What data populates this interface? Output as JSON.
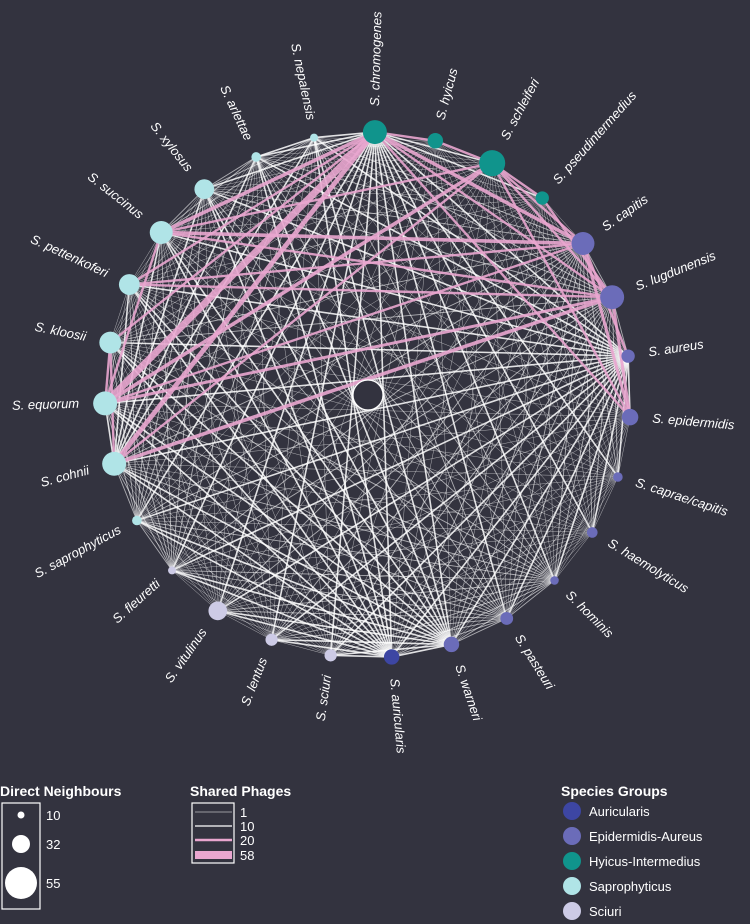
{
  "colors": {
    "background": "#33333f",
    "edge_light": "#ffffff",
    "edge_pink": "#e9a6cf",
    "Auriculari": "#3d46a3",
    "Epidermidis-Aureus": "#6b6cb9",
    "Hyicus-Intermedius": "#10948c",
    "Saprophyticus": "#b0e4e7",
    "Sciuri": "#cdcbe6"
  },
  "nodes": [
    {
      "label": "S. chromogenes",
      "group": "Hyicus-Intermedius",
      "neighbours": 40
    },
    {
      "label": "S. hyicus",
      "group": "Hyicus-Intermedius",
      "neighbours": 24
    },
    {
      "label": "S. schleiferi",
      "group": "Hyicus-Intermedius",
      "neighbours": 44
    },
    {
      "label": "S. pseudintermedius",
      "group": "Hyicus-Intermedius",
      "neighbours": 20
    },
    {
      "label": "S. capitis",
      "group": "Epidermidis-Aureus",
      "neighbours": 38
    },
    {
      "label": "S. lugdunensis",
      "group": "Epidermidis-Aureus",
      "neighbours": 40
    },
    {
      "label": "S. aureus",
      "group": "Epidermidis-Aureus",
      "neighbours": 20
    },
    {
      "label": "S. epidermidis",
      "group": "Epidermidis-Aureus",
      "neighbours": 26
    },
    {
      "label": "S. caprae/capitis",
      "group": "Epidermidis-Aureus",
      "neighbours": 13
    },
    {
      "label": "S. haemolyticus",
      "group": "Epidermidis-Aureus",
      "neighbours": 15
    },
    {
      "label": "S. hominis",
      "group": "Epidermidis-Aureus",
      "neighbours": 11
    },
    {
      "label": "S. pasteuri",
      "group": "Epidermidis-Aureus",
      "neighbours": 19
    },
    {
      "label": "S. warneri",
      "group": "Epidermidis-Aureus",
      "neighbours": 24
    },
    {
      "label": "S. auricularis",
      "group": "Auriculari",
      "neighbours": 24
    },
    {
      "label": "S. sciuri",
      "group": "Sciuri",
      "neighbours": 18
    },
    {
      "label": "S. lentus",
      "group": "Sciuri",
      "neighbours": 18
    },
    {
      "label": "S. vitulinus",
      "group": "Sciuri",
      "neighbours": 30
    },
    {
      "label": "S. fleuretti",
      "group": "Sciuri",
      "neighbours": 10
    },
    {
      "label": "S. saprophyticus",
      "group": "Saprophyticus",
      "neighbours": 13
    },
    {
      "label": "S. cohnii",
      "group": "Saprophyticus",
      "neighbours": 40
    },
    {
      "label": "S. equorum",
      "group": "Saprophyticus",
      "neighbours": 40
    },
    {
      "label": "S. kloosii",
      "group": "Saprophyticus",
      "neighbours": 36
    },
    {
      "label": "S. pettenkoferi",
      "group": "Saprophyticus",
      "neighbours": 34
    },
    {
      "label": "S. succinus",
      "group": "Saprophyticus",
      "neighbours": 38
    },
    {
      "label": "S. xylosus",
      "group": "Saprophyticus",
      "neighbours": 32
    },
    {
      "label": "S. arlettae",
      "group": "Saprophyticus",
      "neighbours": 13
    },
    {
      "label": "S. nepalensis",
      "group": "Saprophyticus",
      "neighbours": 10
    }
  ],
  "pink_edges": [
    [
      0,
      20,
      58
    ],
    [
      0,
      19,
      40
    ],
    [
      0,
      23,
      30
    ],
    [
      0,
      22,
      20
    ],
    [
      0,
      21,
      20
    ],
    [
      2,
      20,
      30
    ],
    [
      2,
      19,
      20
    ],
    [
      2,
      23,
      20
    ],
    [
      4,
      23,
      30
    ],
    [
      4,
      20,
      20
    ],
    [
      4,
      0,
      30
    ],
    [
      4,
      2,
      20
    ],
    [
      4,
      22,
      20
    ],
    [
      5,
      20,
      25
    ],
    [
      5,
      19,
      30
    ],
    [
      5,
      22,
      20
    ],
    [
      5,
      23,
      20
    ],
    [
      5,
      0,
      20
    ],
    [
      5,
      2,
      20
    ],
    [
      7,
      4,
      25
    ],
    [
      7,
      5,
      25
    ],
    [
      6,
      4,
      20
    ],
    [
      7,
      2,
      20
    ],
    [
      3,
      5,
      20
    ],
    [
      3,
      2,
      20
    ],
    [
      19,
      21,
      20
    ],
    [
      20,
      21,
      20
    ],
    [
      20,
      23,
      20
    ],
    [
      0,
      1,
      20
    ],
    [
      1,
      2,
      20
    ],
    [
      0,
      7,
      20
    ]
  ],
  "legend_neighbours": {
    "title": "Direct Neighbours",
    "values": [
      "10",
      "32",
      "55"
    ]
  },
  "legend_phages": {
    "title": "Shared Phages",
    "values": [
      "1",
      "10",
      "20",
      "58"
    ]
  },
  "legend_groups": {
    "title": "Species Groups",
    "items": [
      "Auricularis",
      "Epidermidis-Aureus",
      "Hyicus-Intermedius",
      "Saprophyticus",
      "Sciuri"
    ]
  }
}
